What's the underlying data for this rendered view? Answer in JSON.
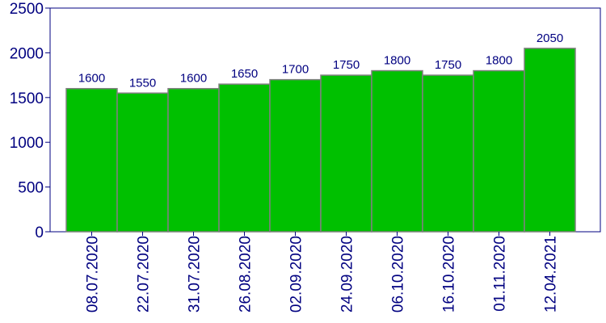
{
  "colors": {
    "text": "#000080",
    "plot_border": "#000080",
    "bar_fill": "#00c000",
    "bar_stroke": "#808080",
    "background": "#ffffff"
  },
  "chart_data": {
    "type": "bar",
    "title": "",
    "xlabel": "",
    "ylabel": "",
    "categories": [
      "08.07.2020",
      "22.07.2020",
      "31.07.2020",
      "26.08.2020",
      "02.09.2020",
      "24.09.2020",
      "06.10.2020",
      "16.10.2020",
      "01.11.2020",
      "12.04.2021"
    ],
    "values": [
      1600,
      1550,
      1600,
      1650,
      1700,
      1750,
      1800,
      1750,
      1800,
      2050
    ],
    "data_labels": [
      "1600",
      "1550",
      "1600",
      "1650",
      "1700",
      "1750",
      "1800",
      "1750",
      "1800",
      "2050"
    ],
    "ylim": [
      0,
      2500
    ],
    "yticks": [
      0,
      500,
      1000,
      1500,
      2000,
      2500
    ],
    "ytick_labels": [
      "0",
      "500",
      "1000",
      "1500",
      "2000",
      "2500"
    ],
    "grid": false,
    "legend": "none",
    "x_tick_rotation": "vertical"
  }
}
